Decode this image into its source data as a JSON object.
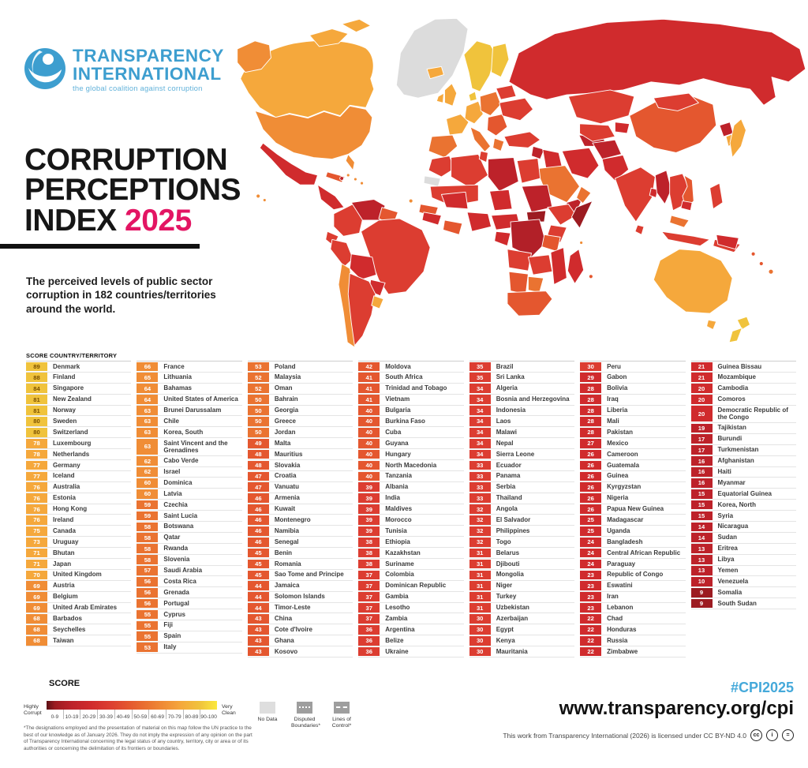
{
  "logo": {
    "line1": "TRANSPARENCY",
    "line2": "INTERNATIONAL",
    "tagline": "the global coalition against corruption"
  },
  "title": {
    "line1": "CORRUPTION",
    "line2": "PERCEPTIONS",
    "line3": "INDEX",
    "year": "2025"
  },
  "subtitle": "The perceived levels of public sector corruption in 182 countries/territories around the world.",
  "table_header": "SCORE   COUNTRY/TERRITORY",
  "colors": {
    "b90": "#fbe93e",
    "b80": "#f0c33c",
    "b70": "#f5a83c",
    "b60": "#f08d36",
    "b50": "#ea7331",
    "b40": "#e4572f",
    "b30": "#dc3d31",
    "b20": "#d02b2d",
    "b10": "#bd222a",
    "b0": "#9c1b21",
    "nodata": "#dcdcdc",
    "accent_pink": "#e31563",
    "accent_blue": "#45a9da"
  },
  "legend": {
    "title": "SCORE",
    "left_label": "Highly Corrupt",
    "right_label": "Very Clean",
    "buckets": [
      "0-9",
      "10-19",
      "20-29",
      "30-39",
      "40-49",
      "50-59",
      "60-69",
      "70-79",
      "80-89",
      "90-100"
    ],
    "no_data": "No Data",
    "disputed": "Disputed Boundaries*",
    "lines_of_control": "Lines of Control*",
    "footnote": "*The designations employed and the presentation of material on this map follow the UN practice to the best of our knowledge as of January 2026. They do not imply the expression of any opinion on the part of Transparency International concerning the legal status of any country, territory, city or area or of its authorities or concerning the delimitation of its frontiers or boundaries."
  },
  "footer": {
    "hashtag": "#CPI2025",
    "url": "www.transparency.org/cpi",
    "license": "This work from Transparency International (2026) is licensed under CC BY-ND 4.0"
  },
  "chart_data": {
    "type": "choropleth+table",
    "title": "Corruption Perceptions Index 2025",
    "score_range": [
      0,
      100
    ],
    "legend_buckets": [
      "0-9",
      "10-19",
      "20-29",
      "30-39",
      "40-49",
      "50-59",
      "60-69",
      "70-79",
      "80-89",
      "90-100"
    ],
    "columns": [
      [
        {
          "score": 89,
          "country": "Denmark"
        },
        {
          "score": 88,
          "country": "Finland"
        },
        {
          "score": 84,
          "country": "Singapore"
        },
        {
          "score": 81,
          "country": "New Zealand"
        },
        {
          "score": 81,
          "country": "Norway"
        },
        {
          "score": 80,
          "country": "Sweden"
        },
        {
          "score": 80,
          "country": "Switzerland"
        },
        {
          "score": 78,
          "country": "Luxembourg"
        },
        {
          "score": 78,
          "country": "Netherlands"
        },
        {
          "score": 77,
          "country": "Germany"
        },
        {
          "score": 77,
          "country": "Iceland"
        },
        {
          "score": 76,
          "country": "Australia"
        },
        {
          "score": 76,
          "country": "Estonia"
        },
        {
          "score": 76,
          "country": "Hong Kong"
        },
        {
          "score": 76,
          "country": "Ireland"
        },
        {
          "score": 75,
          "country": "Canada"
        },
        {
          "score": 73,
          "country": "Uruguay"
        },
        {
          "score": 71,
          "country": "Bhutan"
        },
        {
          "score": 71,
          "country": "Japan"
        },
        {
          "score": 70,
          "country": "United Kingdom"
        },
        {
          "score": 69,
          "country": "Austria"
        },
        {
          "score": 69,
          "country": "Belgium"
        },
        {
          "score": 69,
          "country": "United Arab Emirates"
        },
        {
          "score": 68,
          "country": "Barbados"
        },
        {
          "score": 68,
          "country": "Seychelles"
        },
        {
          "score": 68,
          "country": "Taiwan"
        }
      ],
      [
        {
          "score": 66,
          "country": "France"
        },
        {
          "score": 65,
          "country": "Lithuania"
        },
        {
          "score": 64,
          "country": "Bahamas"
        },
        {
          "score": 64,
          "country": "United States of America"
        },
        {
          "score": 63,
          "country": "Brunei Darussalam"
        },
        {
          "score": 63,
          "country": "Chile"
        },
        {
          "score": 63,
          "country": "Korea, South"
        },
        {
          "score": 63,
          "country": "Saint Vincent and the Grenadines"
        },
        {
          "score": 62,
          "country": "Cabo Verde"
        },
        {
          "score": 62,
          "country": "Israel"
        },
        {
          "score": 60,
          "country": "Dominica"
        },
        {
          "score": 60,
          "country": "Latvia"
        },
        {
          "score": 59,
          "country": "Czechia"
        },
        {
          "score": 59,
          "country": "Saint Lucia"
        },
        {
          "score": 58,
          "country": "Botswana"
        },
        {
          "score": 58,
          "country": "Qatar"
        },
        {
          "score": 58,
          "country": "Rwanda"
        },
        {
          "score": 58,
          "country": "Slovenia"
        },
        {
          "score": 57,
          "country": "Saudi Arabia"
        },
        {
          "score": 56,
          "country": "Costa Rica"
        },
        {
          "score": 56,
          "country": "Grenada"
        },
        {
          "score": 56,
          "country": "Portugal"
        },
        {
          "score": 55,
          "country": "Cyprus"
        },
        {
          "score": 55,
          "country": "Fiji"
        },
        {
          "score": 55,
          "country": "Spain"
        },
        {
          "score": 53,
          "country": "Italy"
        }
      ],
      [
        {
          "score": 53,
          "country": "Poland"
        },
        {
          "score": 52,
          "country": "Malaysia"
        },
        {
          "score": 52,
          "country": "Oman"
        },
        {
          "score": 50,
          "country": "Bahrain"
        },
        {
          "score": 50,
          "country": "Georgia"
        },
        {
          "score": 50,
          "country": "Greece"
        },
        {
          "score": 50,
          "country": "Jordan"
        },
        {
          "score": 49,
          "country": "Malta"
        },
        {
          "score": 48,
          "country": "Mauritius"
        },
        {
          "score": 48,
          "country": "Slovakia"
        },
        {
          "score": 47,
          "country": "Croatia"
        },
        {
          "score": 47,
          "country": "Vanuatu"
        },
        {
          "score": 46,
          "country": "Armenia"
        },
        {
          "score": 46,
          "country": "Kuwait"
        },
        {
          "score": 46,
          "country": "Montenegro"
        },
        {
          "score": 46,
          "country": "Namibia"
        },
        {
          "score": 46,
          "country": "Senegal"
        },
        {
          "score": 45,
          "country": "Benin"
        },
        {
          "score": 45,
          "country": "Romania"
        },
        {
          "score": 45,
          "country": "Sao Tome and Principe"
        },
        {
          "score": 44,
          "country": "Jamaica"
        },
        {
          "score": 44,
          "country": "Solomon Islands"
        },
        {
          "score": 44,
          "country": "Timor-Leste"
        },
        {
          "score": 43,
          "country": "China"
        },
        {
          "score": 43,
          "country": "Cote d'Ivoire"
        },
        {
          "score": 43,
          "country": "Ghana"
        },
        {
          "score": 43,
          "country": "Kosovo"
        }
      ],
      [
        {
          "score": 42,
          "country": "Moldova"
        },
        {
          "score": 41,
          "country": "South Africa"
        },
        {
          "score": 41,
          "country": "Trinidad and Tobago"
        },
        {
          "score": 41,
          "country": "Vietnam"
        },
        {
          "score": 40,
          "country": "Bulgaria"
        },
        {
          "score": 40,
          "country": "Burkina Faso"
        },
        {
          "score": 40,
          "country": "Cuba"
        },
        {
          "score": 40,
          "country": "Guyana"
        },
        {
          "score": 40,
          "country": "Hungary"
        },
        {
          "score": 40,
          "country": "North Macedonia"
        },
        {
          "score": 40,
          "country": "Tanzania"
        },
        {
          "score": 39,
          "country": "Albania"
        },
        {
          "score": 39,
          "country": "India"
        },
        {
          "score": 39,
          "country": "Maldives"
        },
        {
          "score": 39,
          "country": "Morocco"
        },
        {
          "score": 39,
          "country": "Tunisia"
        },
        {
          "score": 38,
          "country": "Ethiopia"
        },
        {
          "score": 38,
          "country": "Kazakhstan"
        },
        {
          "score": 38,
          "country": "Suriname"
        },
        {
          "score": 37,
          "country": "Colombia"
        },
        {
          "score": 37,
          "country": "Dominican Republic"
        },
        {
          "score": 37,
          "country": "Gambia"
        },
        {
          "score": 37,
          "country": "Lesotho"
        },
        {
          "score": 37,
          "country": "Zambia"
        },
        {
          "score": 36,
          "country": "Argentina"
        },
        {
          "score": 36,
          "country": "Belize"
        },
        {
          "score": 36,
          "country": "Ukraine"
        }
      ],
      [
        {
          "score": 35,
          "country": "Brazil"
        },
        {
          "score": 35,
          "country": "Sri Lanka"
        },
        {
          "score": 34,
          "country": "Algeria"
        },
        {
          "score": 34,
          "country": "Bosnia and Herzegovina"
        },
        {
          "score": 34,
          "country": "Indonesia"
        },
        {
          "score": 34,
          "country": "Laos"
        },
        {
          "score": 34,
          "country": "Malawi"
        },
        {
          "score": 34,
          "country": "Nepal"
        },
        {
          "score": 34,
          "country": "Sierra Leone"
        },
        {
          "score": 33,
          "country": "Ecuador"
        },
        {
          "score": 33,
          "country": "Panama"
        },
        {
          "score": 33,
          "country": "Serbia"
        },
        {
          "score": 33,
          "country": "Thailand"
        },
        {
          "score": 32,
          "country": "Angola"
        },
        {
          "score": 32,
          "country": "El Salvador"
        },
        {
          "score": 32,
          "country": "Philippines"
        },
        {
          "score": 32,
          "country": "Togo"
        },
        {
          "score": 31,
          "country": "Belarus"
        },
        {
          "score": 31,
          "country": "Djibouti"
        },
        {
          "score": 31,
          "country": "Mongolia"
        },
        {
          "score": 31,
          "country": "Niger"
        },
        {
          "score": 31,
          "country": "Turkey"
        },
        {
          "score": 31,
          "country": "Uzbekistan"
        },
        {
          "score": 30,
          "country": "Azerbaijan"
        },
        {
          "score": 30,
          "country": "Egypt"
        },
        {
          "score": 30,
          "country": "Kenya"
        },
        {
          "score": 30,
          "country": "Mauritania"
        }
      ],
      [
        {
          "score": 30,
          "country": "Peru"
        },
        {
          "score": 29,
          "country": "Gabon"
        },
        {
          "score": 28,
          "country": "Bolivia"
        },
        {
          "score": 28,
          "country": "Iraq"
        },
        {
          "score": 28,
          "country": "Liberia"
        },
        {
          "score": 28,
          "country": "Mali"
        },
        {
          "score": 28,
          "country": "Pakistan"
        },
        {
          "score": 27,
          "country": "Mexico"
        },
        {
          "score": 26,
          "country": "Cameroon"
        },
        {
          "score": 26,
          "country": "Guatemala"
        },
        {
          "score": 26,
          "country": "Guinea"
        },
        {
          "score": 26,
          "country": "Kyrgyzstan"
        },
        {
          "score": 26,
          "country": "Nigeria"
        },
        {
          "score": 26,
          "country": "Papua New Guinea"
        },
        {
          "score": 25,
          "country": "Madagascar"
        },
        {
          "score": 25,
          "country": "Uganda"
        },
        {
          "score": 24,
          "country": "Bangladesh"
        },
        {
          "score": 24,
          "country": "Central African Republic"
        },
        {
          "score": 24,
          "country": "Paraguay"
        },
        {
          "score": 23,
          "country": "Republic of Congo"
        },
        {
          "score": 23,
          "country": "Eswatini"
        },
        {
          "score": 23,
          "country": "Iran"
        },
        {
          "score": 23,
          "country": "Lebanon"
        },
        {
          "score": 22,
          "country": "Chad"
        },
        {
          "score": 22,
          "country": "Honduras"
        },
        {
          "score": 22,
          "country": "Russia"
        },
        {
          "score": 22,
          "country": "Zimbabwe"
        }
      ],
      [
        {
          "score": 21,
          "country": "Guinea Bissau"
        },
        {
          "score": 21,
          "country": "Mozambique"
        },
        {
          "score": 20,
          "country": "Cambodia"
        },
        {
          "score": 20,
          "country": "Comoros"
        },
        {
          "score": 20,
          "country": "Democratic Republic of the Congo"
        },
        {
          "score": 19,
          "country": "Tajikistan"
        },
        {
          "score": 17,
          "country": "Burundi"
        },
        {
          "score": 17,
          "country": "Turkmenistan"
        },
        {
          "score": 16,
          "country": "Afghanistan"
        },
        {
          "score": 16,
          "country": "Haiti"
        },
        {
          "score": 16,
          "country": "Myanmar"
        },
        {
          "score": 15,
          "country": "Equatorial Guinea"
        },
        {
          "score": 15,
          "country": "Korea, North"
        },
        {
          "score": 15,
          "country": "Syria"
        },
        {
          "score": 14,
          "country": "Nicaragua"
        },
        {
          "score": 14,
          "country": "Sudan"
        },
        {
          "score": 13,
          "country": "Eritrea"
        },
        {
          "score": 13,
          "country": "Libya"
        },
        {
          "score": 13,
          "country": "Yemen"
        },
        {
          "score": 10,
          "country": "Venezuela"
        },
        {
          "score": 9,
          "country": "Somalia"
        },
        {
          "score": 9,
          "country": "South Sudan"
        }
      ]
    ]
  }
}
